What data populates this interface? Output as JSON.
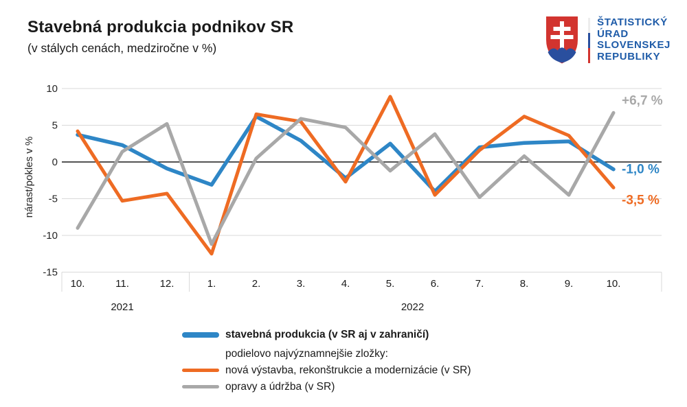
{
  "header": {
    "title": "Stavebná produkcia podnikov SR",
    "subtitle": "(v stálych cenách, medziročne v %)"
  },
  "logo": {
    "lines": [
      "ŠTATISTICKÝ",
      "ÚRAD",
      "SLOVENSKEJ",
      "REPUBLIKY"
    ],
    "colors": {
      "shield_red": "#d2342f",
      "shield_blue": "#2a4f9e",
      "text_blue": "#1e5ba8",
      "flag_white": "#ededed",
      "flag_blue": "#2a4f9e",
      "flag_red": "#d2342f"
    }
  },
  "legend": {
    "subheading": "podielovo najvýznamnejšie zložky:"
  },
  "chart_data": {
    "type": "line",
    "x_tick_labels": [
      "10.",
      "11.",
      "12.",
      "1.",
      "2.",
      "3.",
      "4.",
      "5.",
      "6.",
      "7.",
      "8.",
      "9.",
      "10."
    ],
    "year_groups": [
      {
        "label": "2021",
        "first_month_index": 0,
        "last_month_index": 2
      },
      {
        "label": "2022",
        "first_month_index": 3,
        "last_month_index": 12
      }
    ],
    "ylabel": "nárast/pokles v %",
    "ylim": [
      -15,
      10
    ],
    "yticks": [
      10,
      5,
      0,
      -5,
      -10,
      -15
    ],
    "grid": "horizontal",
    "legend_position": "bottom",
    "colors": {
      "gridline": "#d9d9d9",
      "zero_line": "#1a1a1a",
      "tick_text": "#262626"
    },
    "series": [
      {
        "name": "stavebná produkcia (v SR aj v zahraničí)",
        "color": "#2e86c6",
        "end_label": "-1,0 %",
        "values": [
          3.7,
          2.3,
          -0.9,
          -3.1,
          6.2,
          2.9,
          -2.2,
          2.5,
          -4.0,
          2.0,
          2.6,
          2.8,
          -1.0
        ]
      },
      {
        "name": "nová výstavba, rekonštrukcie a modernizácie (v SR)",
        "color": "#ee6b23",
        "end_label": "-3,5 %",
        "values": [
          4.2,
          -5.3,
          -4.3,
          -12.5,
          6.5,
          5.5,
          -2.7,
          8.9,
          -4.5,
          1.6,
          6.2,
          3.6,
          -3.5
        ]
      },
      {
        "name": "opravy a údržba (v SR)",
        "color": "#a8a8a8",
        "end_label": "+6,7 %",
        "values": [
          -9.0,
          1.4,
          5.2,
          -11.2,
          0.5,
          5.9,
          4.7,
          -1.2,
          3.8,
          -4.8,
          0.8,
          -4.5,
          6.7
        ]
      }
    ]
  }
}
